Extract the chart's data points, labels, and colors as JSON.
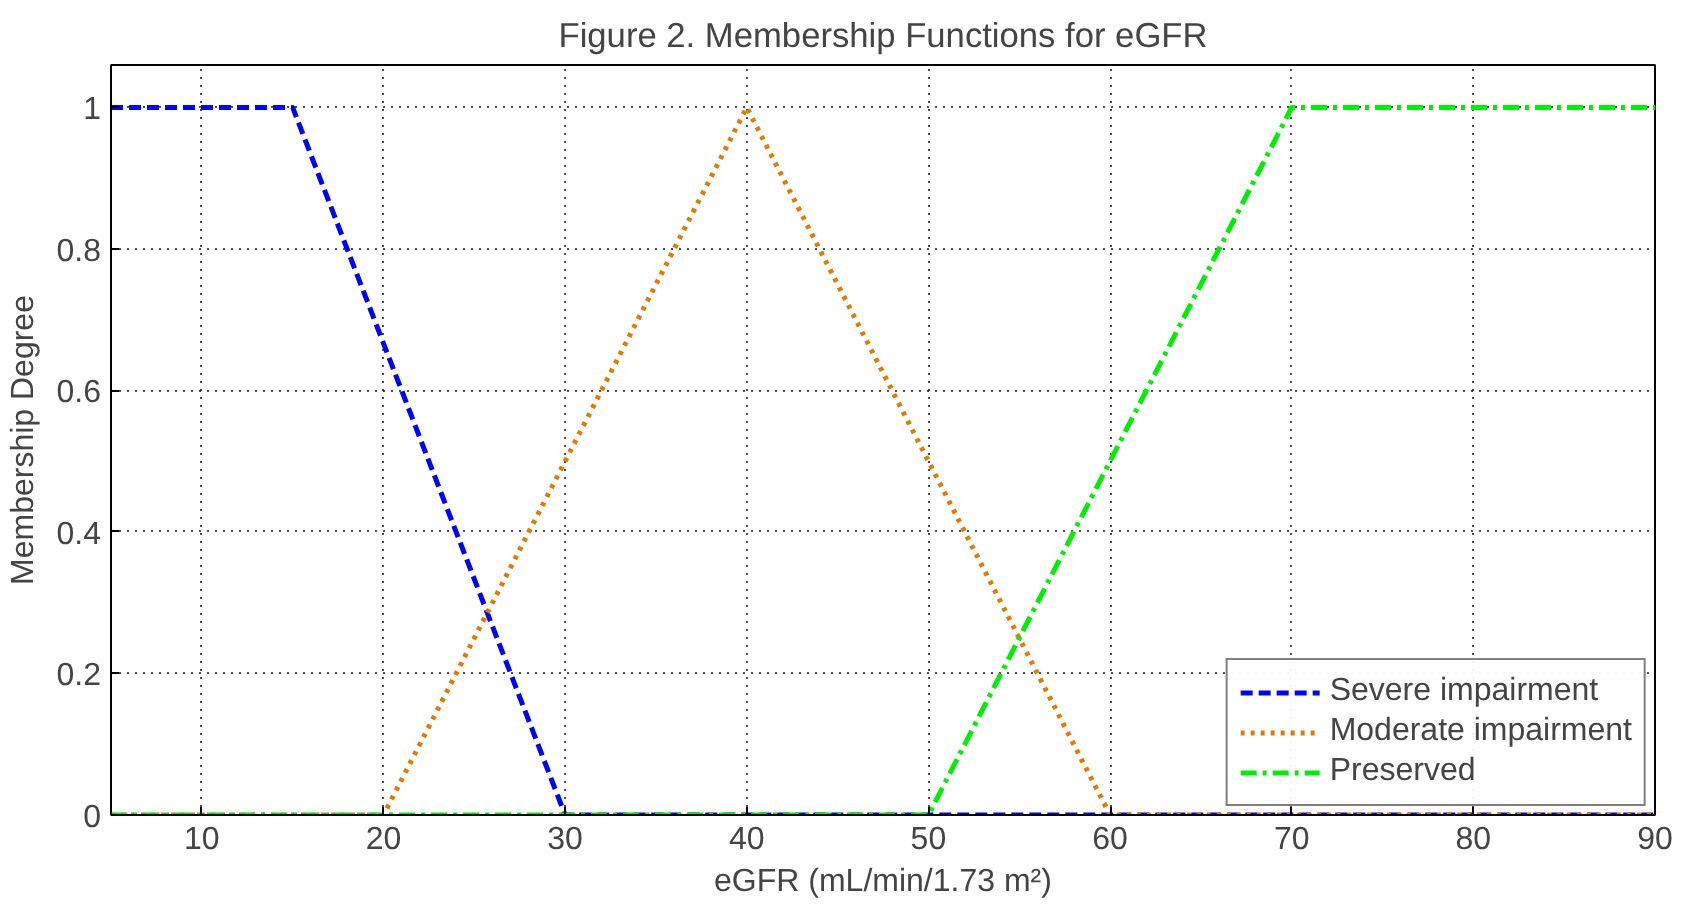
{
  "chart_data": {
    "type": "line",
    "title": "Figure 2. Membership Functions for eGFR",
    "xlabel": "eGFR (mL/min/1.73 m²)",
    "ylabel": "Membership Degree",
    "xlim": [
      5,
      90
    ],
    "ylim": [
      0,
      1.06
    ],
    "xticks": [
      10,
      20,
      30,
      40,
      50,
      60,
      70,
      80,
      90
    ],
    "yticks": [
      0,
      0.2,
      0.4,
      0.6,
      0.8,
      1
    ],
    "grid": true,
    "legend": "bottom right",
    "marker": "none",
    "series": [
      {
        "name": "Severe impairment",
        "color": "#0000ff",
        "line_style": "dashed",
        "x": [
          5,
          15,
          30,
          90
        ],
        "values": [
          1,
          1,
          0,
          0
        ]
      },
      {
        "name": "Moderate impairment",
        "color": "#e07b00",
        "line_style": "dotted",
        "x": [
          5,
          20,
          40,
          60,
          90
        ],
        "values": [
          0,
          0,
          1,
          0,
          0
        ]
      },
      {
        "name": "Preserved",
        "color": "#00ee00",
        "line_style": "dashdot",
        "x": [
          5,
          50,
          70,
          90
        ],
        "values": [
          0,
          0,
          1,
          1
        ]
      }
    ]
  }
}
